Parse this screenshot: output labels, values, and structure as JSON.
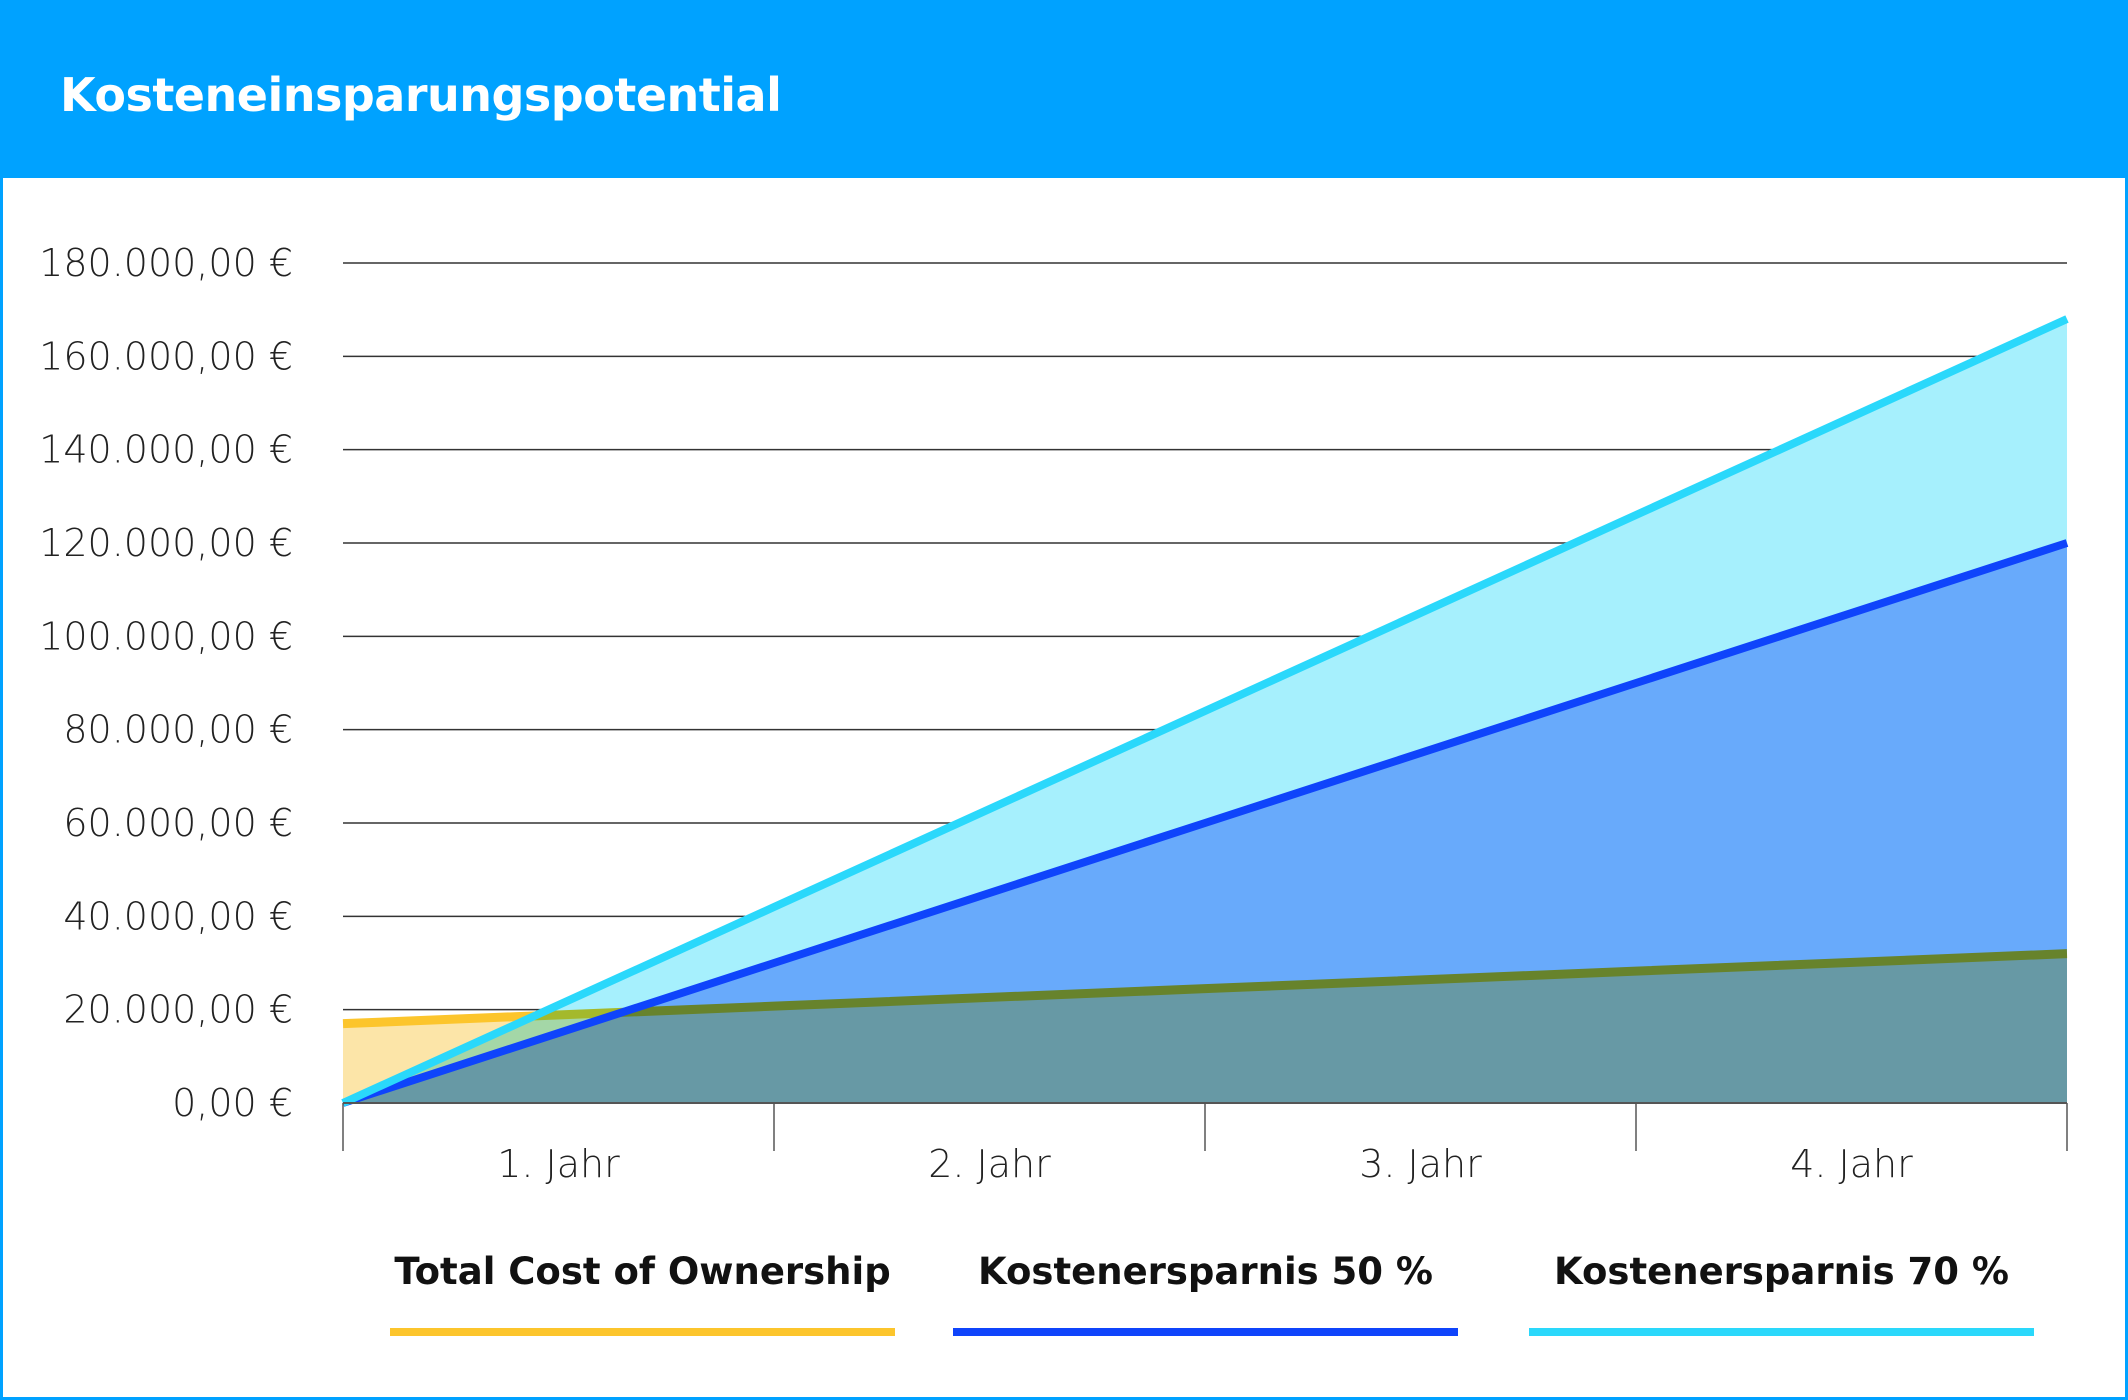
{
  "header": {
    "title": "Kosteneinsparungspotential"
  },
  "colors": {
    "header": "#00a2ff",
    "tco": "#fcc52c",
    "tco_fill": "#fce5a8",
    "save50": "#0f44fb",
    "save50_fill": "#68aafb",
    "save70": "#2ad8fb",
    "save70_fill": "#a6f0fd"
  },
  "chart_data": {
    "type": "area",
    "title": "",
    "x": [
      0,
      1,
      2,
      3,
      4
    ],
    "categories": [
      "1. Jahr",
      "2. Jahr",
      "3. Jahr",
      "4. Jahr"
    ],
    "ylim": [
      0,
      180000
    ],
    "yticks": [
      "0,00 €",
      "20.000,00 €",
      "40.000,00 €",
      "60.000,00 €",
      "80.000,00 €",
      "100.000,00 €",
      "120.000,00 €",
      "140.000,00 €",
      "160.000,00 €",
      "180.000,00 €"
    ],
    "ytick_values": [
      0,
      20000,
      40000,
      60000,
      80000,
      100000,
      120000,
      140000,
      160000,
      180000
    ],
    "grid": true,
    "legend_position": "bottom",
    "series": [
      {
        "name": "Total Cost of Ownership",
        "values": [
          17000,
          20750,
          24500,
          28250,
          32000
        ]
      },
      {
        "name": "Kostenersparnis 50 %",
        "values": [
          0,
          30000,
          60000,
          90000,
          120000
        ]
      },
      {
        "name": "Kostenersparnis 70 %",
        "values": [
          0,
          42000,
          84000,
          126000,
          168000
        ]
      }
    ]
  }
}
